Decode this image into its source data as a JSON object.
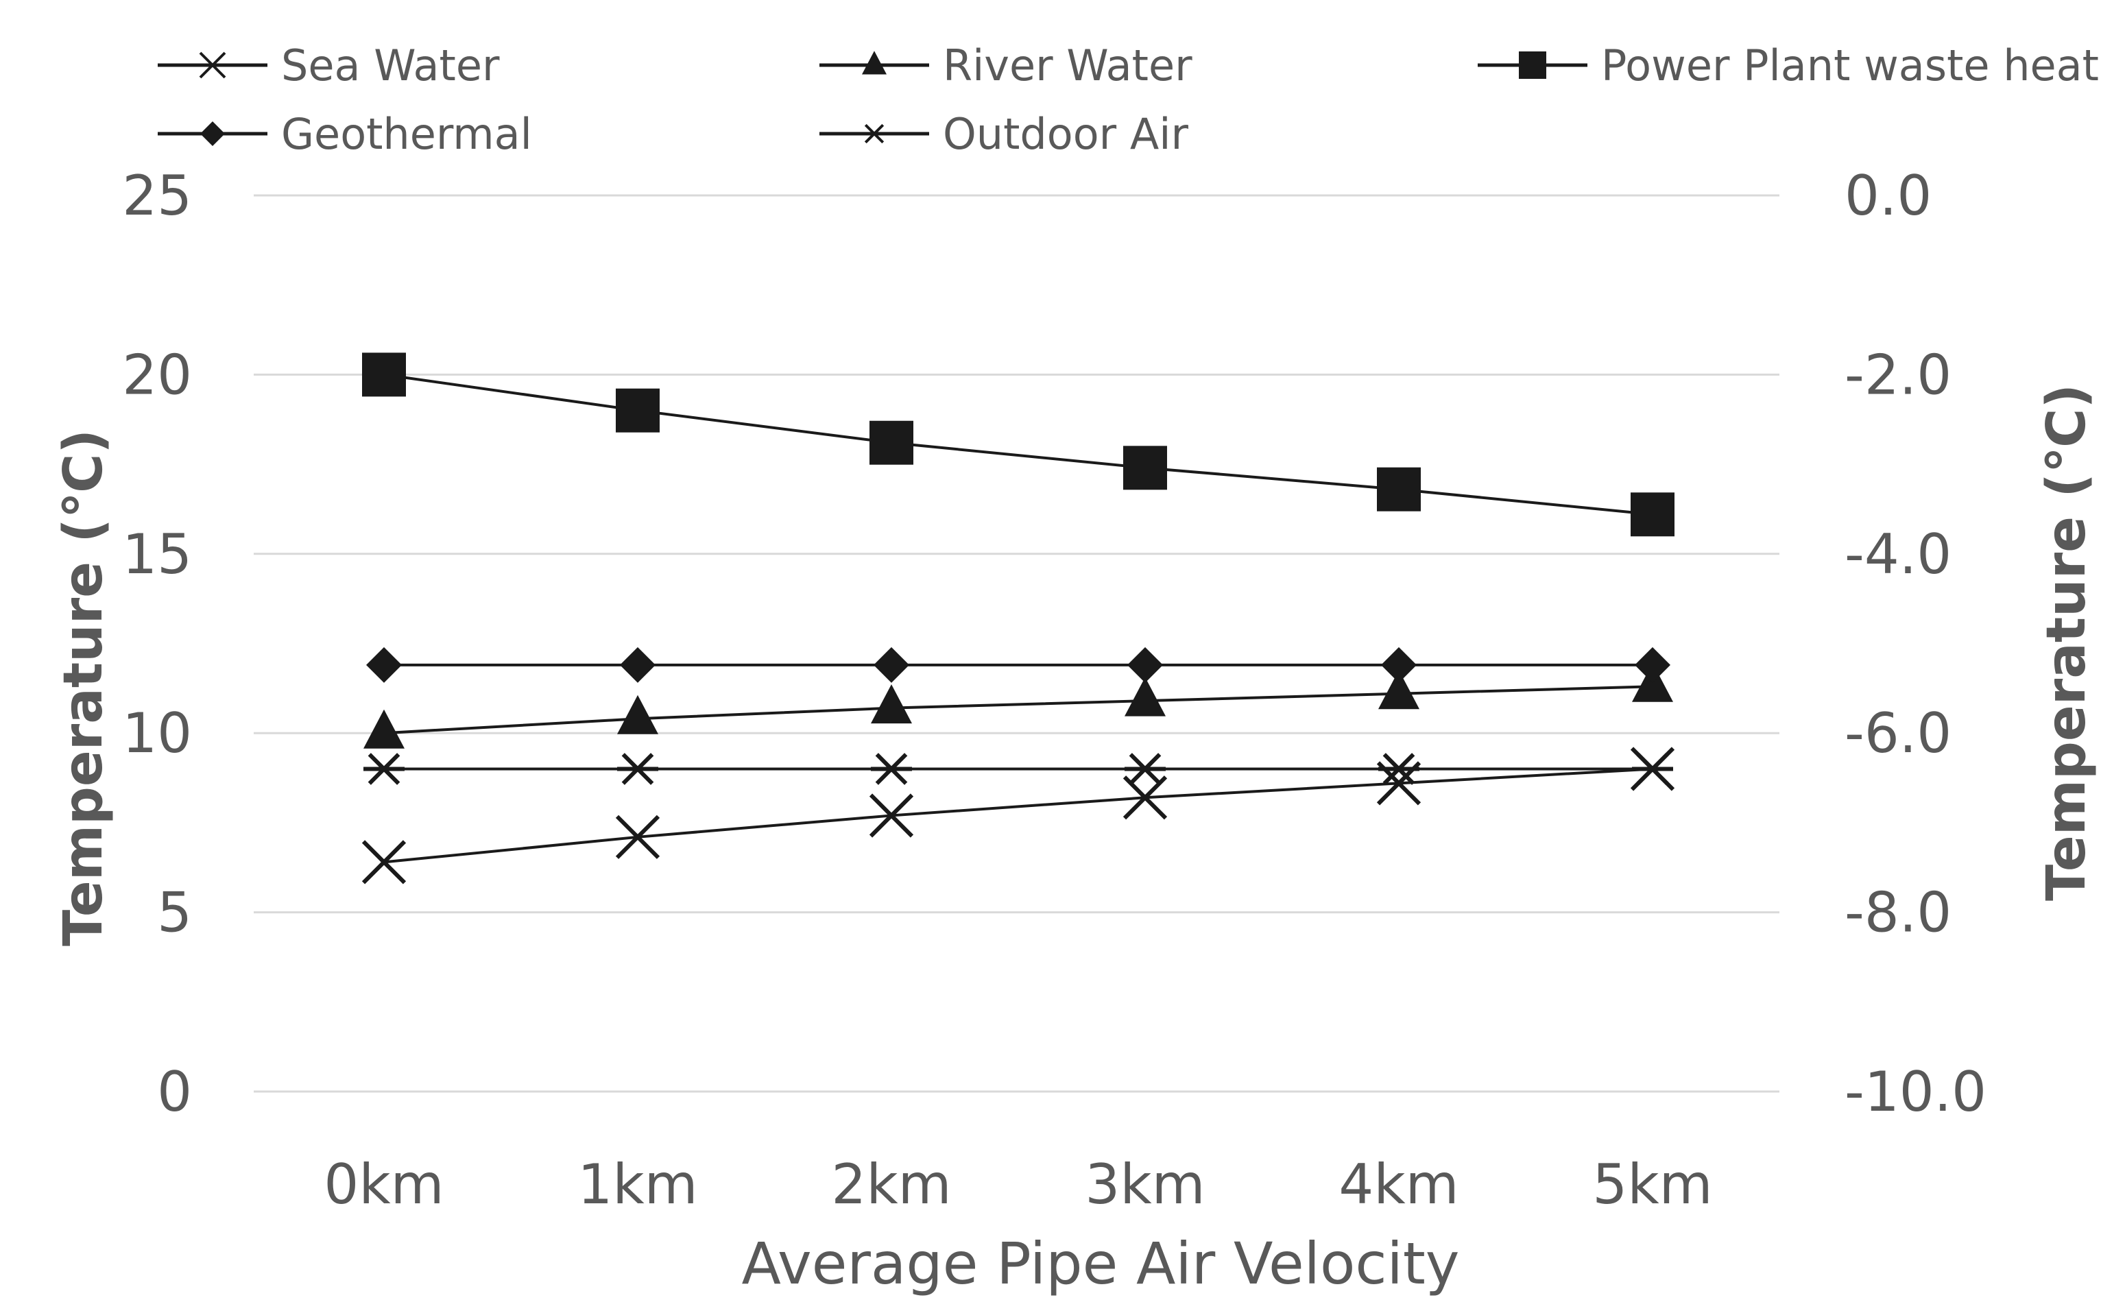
{
  "chart_data": {
    "type": "line",
    "title": "",
    "xlabel": "Average Pipe Air Velocity",
    "ylabel": "Temperature (℃)",
    "y2label": "Temperature (℃)",
    "categories": [
      "0km",
      "1km",
      "2km",
      "3km",
      "4km",
      "5km"
    ],
    "ylim": [
      0,
      25
    ],
    "yticks": [
      "0",
      "5",
      "10",
      "15",
      "20",
      "25"
    ],
    "y2lim": [
      -10.0,
      0.0
    ],
    "y2ticks": [
      "-10.0",
      "-8.0",
      "-6.0",
      "-4.0",
      "-2.0",
      "0.0"
    ],
    "grid": true,
    "legend_position": "top",
    "series": [
      {
        "name": "Sea Water",
        "marker": "x",
        "axis": "left",
        "values": [
          6.4,
          7.1,
          7.7,
          8.2,
          8.6,
          9.0
        ]
      },
      {
        "name": "River Water",
        "marker": "triangle",
        "axis": "left",
        "values": [
          10.0,
          10.4,
          10.7,
          10.9,
          11.1,
          11.3
        ]
      },
      {
        "name": "Power Plant waste heat",
        "marker": "square",
        "axis": "left",
        "values": [
          20.0,
          19.0,
          18.1,
          17.4,
          16.8,
          16.1
        ]
      },
      {
        "name": "Geothermal",
        "marker": "diamond",
        "axis": "left",
        "values": [
          11.9,
          11.9,
          11.9,
          11.9,
          11.9,
          11.9
        ]
      },
      {
        "name": "Outdoor Air",
        "marker": "asterisk",
        "axis": "right",
        "values": [
          -6.4,
          -6.4,
          -6.4,
          -6.4,
          -6.4,
          -6.4
        ]
      }
    ],
    "colors": {
      "series": "#1a1a1a",
      "text": "#595959",
      "grid": "#d9d9d9"
    }
  }
}
